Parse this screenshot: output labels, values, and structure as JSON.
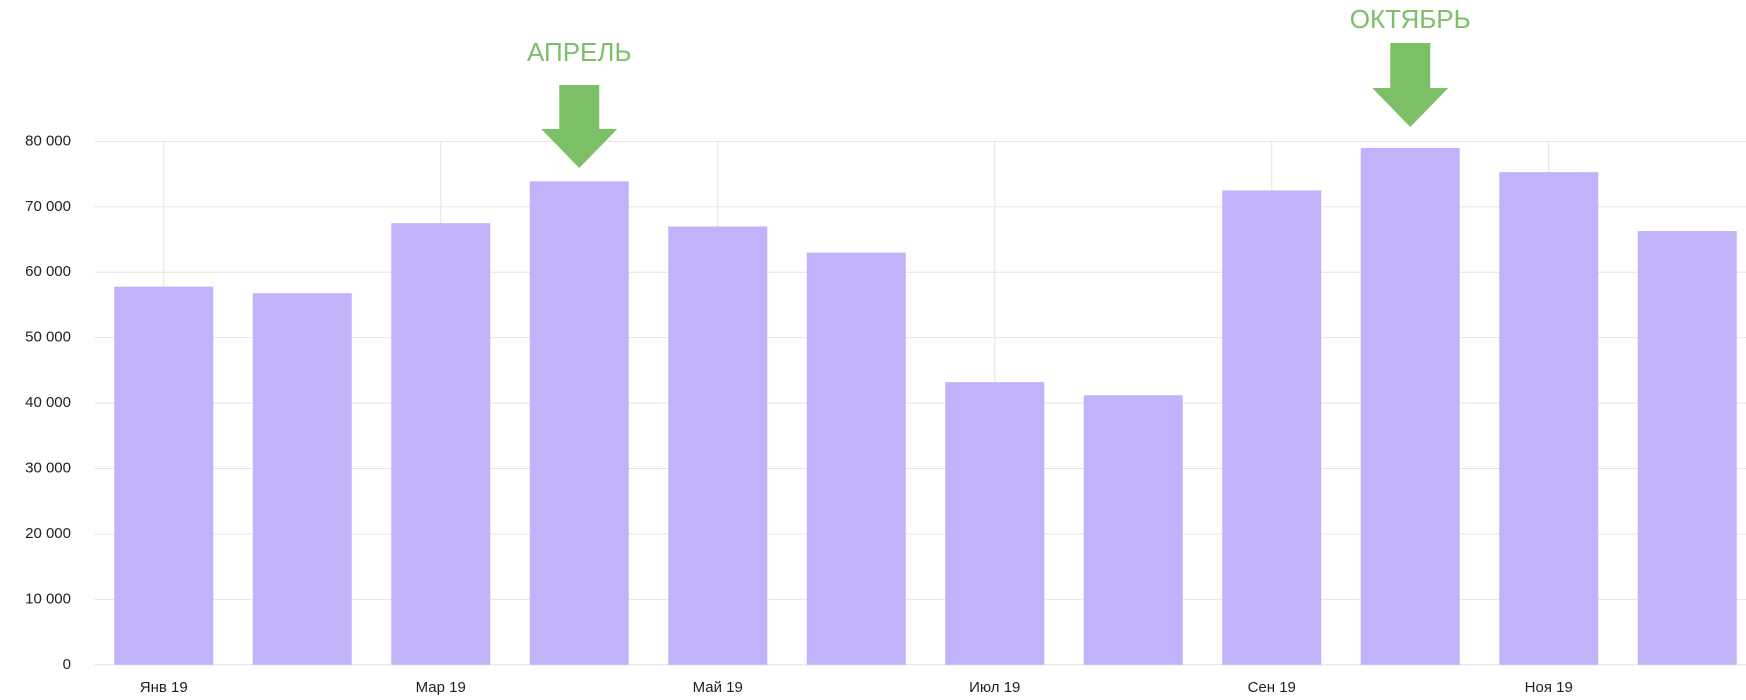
{
  "chart_data": {
    "type": "bar",
    "categories": [
      "Янв 19",
      null,
      "Мар 19",
      null,
      "Май 19",
      null,
      "Июл 19",
      null,
      "Сен 19",
      null,
      "Ноя 19",
      null
    ],
    "values": [
      57800,
      56800,
      67500,
      73900,
      67000,
      63000,
      43200,
      41200,
      72500,
      79000,
      75300,
      66300
    ],
    "color": "#c2b2f9",
    "ylim": [
      0,
      80000
    ],
    "yticks": [
      0,
      {
        "value": 10000,
        "label": "10 000"
      },
      {
        "value": 20000,
        "label": "20 000"
      },
      {
        "value": 30000,
        "label": "30 000"
      },
      {
        "value": 40000,
        "label": "40 000"
      },
      {
        "value": 50000,
        "label": "50 000"
      },
      {
        "value": 60000,
        "label": "60 000"
      },
      {
        "value": 70000,
        "label": "70 000"
      },
      {
        "value": 80000,
        "label": "80 000"
      }
    ],
    "grid": true,
    "annotations": [
      {
        "text": "АПРЕЛЬ",
        "color": "#7dbf66"
      },
      {
        "text": "ОКТЯБРЬ",
        "color": "#7dbf66"
      }
    ]
  }
}
